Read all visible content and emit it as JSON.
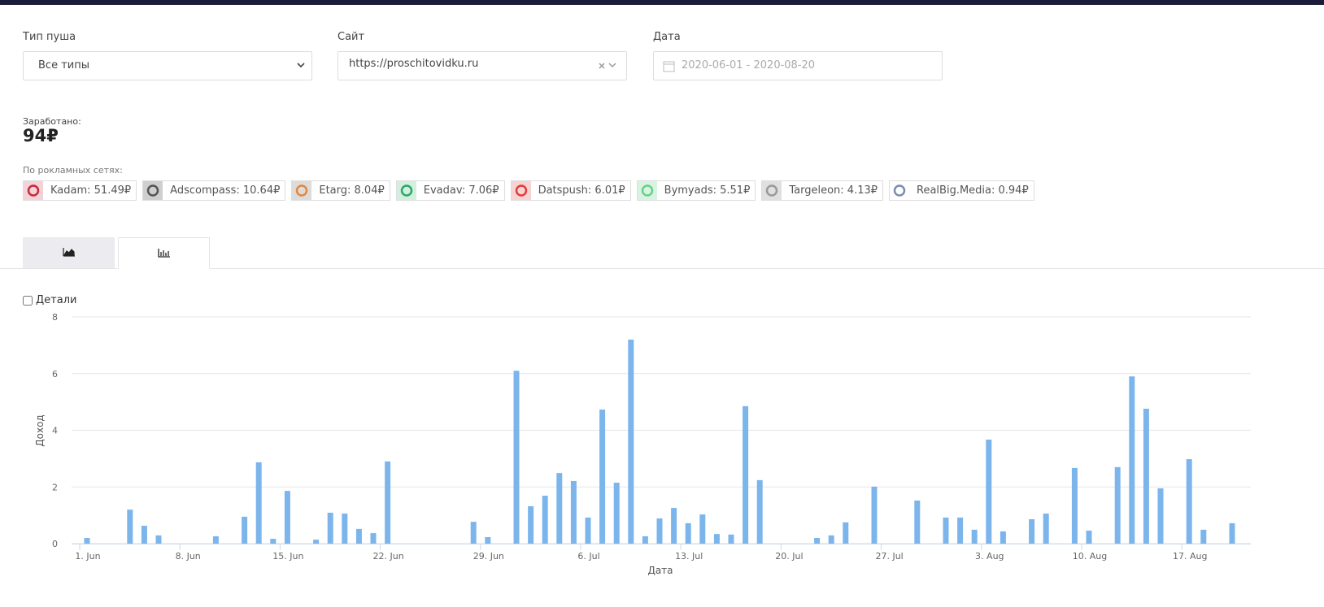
{
  "filters": [
    {
      "label": "Тип пуша",
      "value": "Все типы"
    },
    {
      "label": "Сайт",
      "value": "https://proschitovidku.ru"
    },
    {
      "label": "Дата",
      "value": "2020-06-01 - 2020-08-20"
    }
  ],
  "earned": {
    "label": "Заработано:",
    "value": "94₽"
  },
  "networks": {
    "label": "По рокламных сетях:",
    "items": [
      {
        "text": "Kadam: 51.49₽",
        "color": "#c8283c",
        "bg": "#f3d3d8"
      },
      {
        "text": "Adscompass: 10.64₽",
        "color": "#555",
        "bg": "#cfcfcf"
      },
      {
        "text": "Etarg: 8.04₽",
        "color": "#e8863a",
        "bg": "#dcdcdc"
      },
      {
        "text": "Evadav: 7.06₽",
        "color": "#2aa86a",
        "bg": "#d3f0de"
      },
      {
        "text": "Datspush: 6.01₽",
        "color": "#e23b3b",
        "bg": "#f7d4d4"
      },
      {
        "text": "Bymyads: 5.51₽",
        "color": "#66d08a",
        "bg": "#d9f3e1"
      },
      {
        "text": "Targeleon: 4.13₽",
        "color": "#999",
        "bg": "#e0e0e0"
      },
      {
        "text": "RealBig.Media: 0.94₽",
        "color": "#7b8db0",
        "bg": "#ffffff"
      }
    ]
  },
  "details": "Детали",
  "chart_data": {
    "type": "bar",
    "x_label": "Дата",
    "y_label": "Доход",
    "color": "#7cb5ec",
    "grid": true,
    "categories": [
      "1. Jun",
      null,
      null,
      null,
      null,
      null,
      null,
      "8. Jun",
      null,
      null,
      null,
      null,
      null,
      null,
      "15. Jun",
      null,
      null,
      null,
      null,
      null,
      null,
      "22. Jun",
      null,
      null,
      null,
      null,
      null,
      null,
      "29. Jun",
      null,
      null,
      null,
      null,
      null,
      null,
      "6. Jul",
      null,
      null,
      null,
      null,
      null,
      null,
      "13. Jul",
      null,
      null,
      null,
      null,
      null,
      null,
      "20. Jul",
      null,
      null,
      null,
      null,
      null,
      null,
      "27. Jul",
      null,
      null,
      null,
      null,
      null,
      null,
      "3. Aug",
      null,
      null,
      null,
      null,
      null,
      null,
      "10. Aug",
      null,
      null,
      null,
      null,
      null,
      null,
      "17. Aug",
      null,
      null,
      null
    ],
    "values": [
      0.2,
      0,
      0,
      1.2,
      0.63,
      0.29,
      0,
      0,
      0,
      0.26,
      0,
      0.95,
      2.87,
      0.17,
      1.86,
      0,
      0.14,
      1.09,
      1.06,
      0.52,
      0.37,
      2.9,
      0,
      0,
      0,
      0,
      0,
      0.77,
      0.23,
      0,
      6.1,
      1.32,
      1.69,
      2.49,
      2.21,
      0.92,
      4.73,
      2.15,
      7.2,
      0.26,
      0.89,
      1.26,
      0.72,
      1.03,
      0.34,
      0.32,
      4.85,
      2.24,
      0,
      0,
      0,
      0.2,
      0.29,
      0.75,
      0,
      2.01,
      0,
      0,
      1.52,
      0,
      0.92,
      0.92,
      0.49,
      3.67,
      0.43,
      0,
      0.86,
      1.06,
      0,
      2.67,
      0.46,
      0,
      2.7,
      5.9,
      4.76,
      1.95,
      0,
      2.98,
      0.49,
      0,
      0.72
    ],
    "ylim": [
      0,
      8
    ],
    "yticks": [
      0,
      2,
      4,
      6,
      8
    ]
  }
}
